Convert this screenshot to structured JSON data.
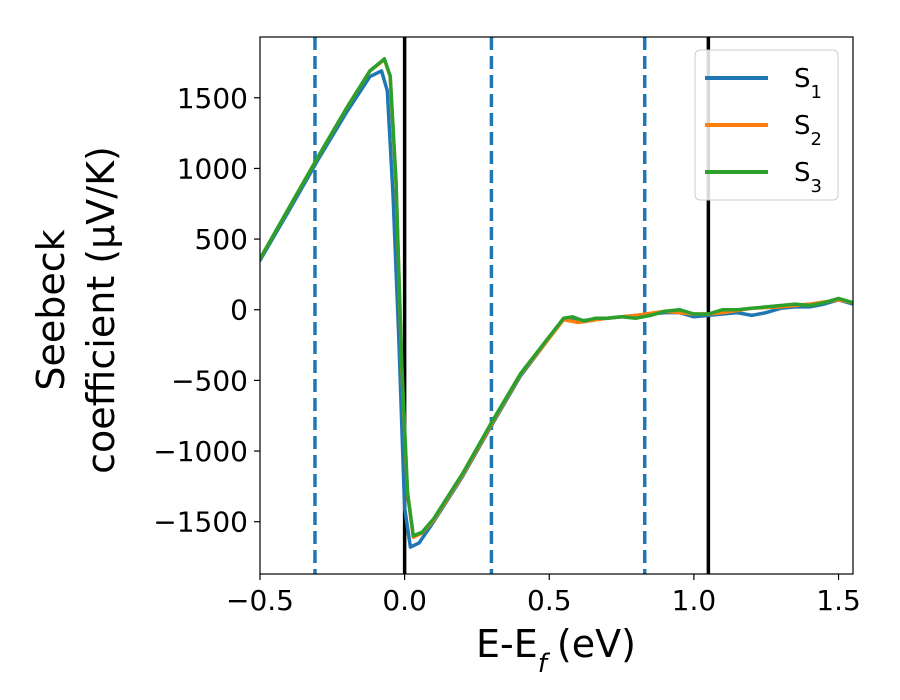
{
  "chart_data": {
    "type": "line",
    "xlabel": "E-E",
    "xlabel_sub": "f",
    "xlabel_unit": "(eV)",
    "ylabel_line1": "Seebeck",
    "ylabel_line2": "coefficient  (μV/K)",
    "xlim": [
      -0.5,
      1.55
    ],
    "ylim": [
      -1870,
      1930
    ],
    "xticks": [
      -0.5,
      0.0,
      0.5,
      1.0,
      1.5
    ],
    "xtick_labels": [
      "−0.5",
      "0.0",
      "0.5",
      "1.0",
      "1.5"
    ],
    "yticks": [
      -1500,
      -1000,
      -500,
      0,
      500,
      1000,
      1500
    ],
    "ytick_labels": [
      "−1500",
      "−1000",
      "−500",
      "0",
      "500",
      "1000",
      "1500"
    ],
    "legend_position": "top-right",
    "vlines_solid": [
      0.0,
      1.05
    ],
    "vlines_dashed": [
      -0.31,
      0.3,
      0.83
    ],
    "series": [
      {
        "name": "S",
        "sub": "1",
        "color": "#1f77b4",
        "x": [
          -0.5,
          -0.4,
          -0.3,
          -0.2,
          -0.12,
          -0.08,
          -0.06,
          -0.04,
          -0.02,
          0.0,
          0.02,
          0.05,
          0.1,
          0.2,
          0.3,
          0.4,
          0.5,
          0.55,
          0.6,
          0.7,
          0.8,
          0.9,
          0.95,
          1.0,
          1.05,
          1.1,
          1.15,
          1.2,
          1.25,
          1.3,
          1.35,
          1.4,
          1.45,
          1.5,
          1.55
        ],
        "y": [
          350,
          700,
          1060,
          1400,
          1650,
          1690,
          1550,
          800,
          -200,
          -1400,
          -1680,
          -1650,
          -1500,
          -1180,
          -820,
          -470,
          -200,
          -60,
          -80,
          -60,
          -40,
          -20,
          -20,
          -50,
          -40,
          -30,
          -20,
          -40,
          -20,
          10,
          20,
          20,
          40,
          70,
          40
        ]
      },
      {
        "name": "S",
        "sub": "2",
        "color": "#ff7f0e",
        "x": [
          -0.5,
          -0.4,
          -0.3,
          -0.2,
          -0.12,
          -0.07,
          -0.05,
          -0.03,
          -0.01,
          0.01,
          0.03,
          0.06,
          0.1,
          0.2,
          0.3,
          0.4,
          0.5,
          0.55,
          0.6,
          0.7,
          0.8,
          0.9,
          1.0,
          1.05,
          1.1,
          1.2,
          1.3,
          1.4,
          1.5,
          1.55
        ],
        "y": [
          360,
          720,
          1080,
          1430,
          1690,
          1770,
          1650,
          900,
          -400,
          -1300,
          -1610,
          -1580,
          -1490,
          -1170,
          -810,
          -460,
          -200,
          -70,
          -90,
          -60,
          -40,
          -10,
          -30,
          -30,
          -20,
          10,
          20,
          40,
          70,
          50
        ]
      },
      {
        "name": "S",
        "sub": "3",
        "color": "#2ca02c",
        "x": [
          -0.5,
          -0.4,
          -0.3,
          -0.2,
          -0.12,
          -0.07,
          -0.05,
          -0.03,
          -0.01,
          0.01,
          0.03,
          0.06,
          0.1,
          0.2,
          0.3,
          0.4,
          0.5,
          0.55,
          0.58,
          0.62,
          0.66,
          0.7,
          0.75,
          0.8,
          0.85,
          0.9,
          0.95,
          1.0,
          1.05,
          1.1,
          1.15,
          1.2,
          1.25,
          1.3,
          1.35,
          1.4,
          1.45,
          1.5,
          1.55
        ],
        "y": [
          360,
          720,
          1080,
          1430,
          1690,
          1775,
          1655,
          910,
          -380,
          -1290,
          -1600,
          -1575,
          -1480,
          -1160,
          -800,
          -455,
          -190,
          -60,
          -50,
          -80,
          -60,
          -60,
          -50,
          -60,
          -40,
          -10,
          0,
          -30,
          -30,
          0,
          0,
          10,
          20,
          30,
          40,
          30,
          50,
          80,
          50
        ]
      }
    ]
  }
}
